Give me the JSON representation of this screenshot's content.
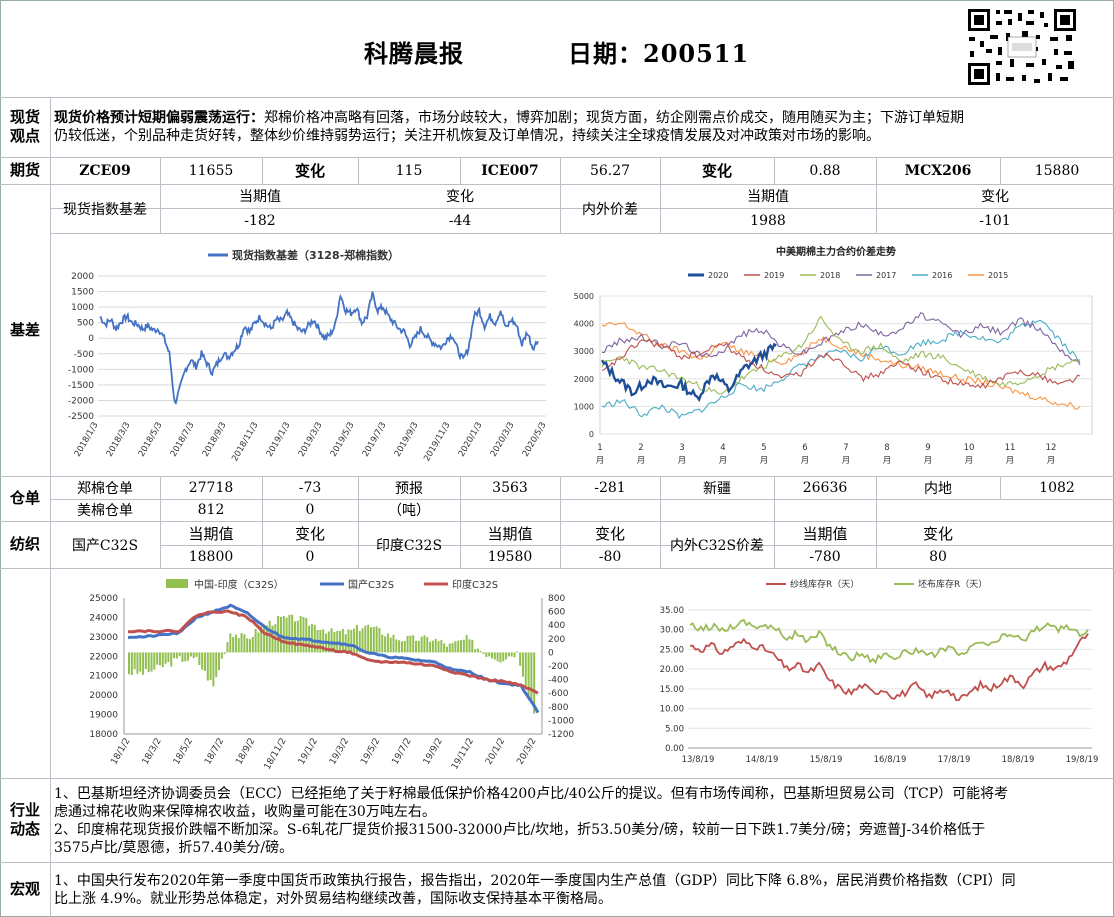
{
  "header": {
    "title": "科腾晨报",
    "date": "日期：200511"
  },
  "spot_view": {
    "label_line1": "现货",
    "label_line2": "观点",
    "headline": "现货价格预计短期偏弱震荡运行：",
    "line1": "郑棉价格冲高略有回落，市场分歧较大，博弈加剧；现货方面，纺企刚需点价成交，随用随买为主；下游订单短期",
    "line2": "仍较低迷，个别品种走货好转，整体纱价维持弱势运行；关注开机恢复及订单情况，持续关注全球疫情发展及对冲政策对市场的影响。"
  },
  "futures": {
    "label": "期货",
    "cells": [
      "ZCE09",
      "11655",
      "变化",
      "115",
      "ICE007",
      "56.27",
      "变化",
      "0.88",
      "MCX206",
      "15880"
    ]
  },
  "basis_table": {
    "row_label": "现货指数基差",
    "h_current": "当期值",
    "h_change": "变化",
    "current": "-182",
    "change": "-44",
    "row2_label": "内外价差",
    "h2_current": "当期值",
    "h2_change": "变化",
    "current2": "1988",
    "change2": "-101"
  },
  "basis_label": "基差",
  "chart_basis": {
    "chart_data": {
      "type": "line",
      "title": "",
      "legend": "现货指数基差（3128-郑棉指数）",
      "ylim": [
        -2500,
        2000
      ],
      "yticks": [
        "2000",
        "1500",
        "1000",
        "500",
        "0",
        "-500",
        "-1000",
        "-1500",
        "-2000",
        "-2500"
      ],
      "xticks": [
        "2018/1/3",
        "2018/3/3",
        "2018/5/3",
        "2018/7/3",
        "2018/9/3",
        "2018/11/3",
        "2019/1/3",
        "2019/3/3",
        "2019/5/3",
        "2019/7/3",
        "2019/9/3",
        "2019/11/3",
        "2020/1/3",
        "2020/3/3",
        "2020/5/3"
      ],
      "series": [
        {
          "name": "现货指数基差（3128-郑棉指数）",
          "color": "#4472c4",
          "values": [
            700,
            450,
            600,
            300,
            550,
            700,
            500,
            450,
            300,
            400,
            250,
            300,
            0,
            -500,
            -2100,
            -1600,
            -1000,
            -700,
            -900,
            -500,
            -800,
            -1100,
            -800,
            -500,
            -600,
            -400,
            -200,
            400,
            200,
            500,
            700,
            450,
            300,
            600,
            550,
            800,
            550,
            300,
            200,
            400,
            600,
            300,
            0,
            100,
            400,
            1400,
            900,
            800,
            1000,
            500,
            700,
            1400,
            900,
            1000,
            700,
            500,
            300,
            200,
            -200,
            0,
            300,
            100,
            -100,
            -200,
            -300,
            0,
            100,
            -400,
            -700,
            -300,
            700,
            900,
            400,
            700,
            500,
            900,
            300,
            600,
            400,
            -200,
            200,
            -300,
            -100
          ]
        }
      ]
    }
  },
  "chart_spread": {
    "chart_data": {
      "type": "line",
      "title": "中美期棉主力合约价差走势",
      "ylim": [
        0,
        5000
      ],
      "yticks": [
        "5000",
        "4000",
        "3000",
        "2000",
        "1000",
        "0"
      ],
      "xticks": [
        "1\n月",
        "2\n月",
        "3\n月",
        "4\n月",
        "5\n月",
        "6\n月",
        "7\n月",
        "8\n月",
        "9\n月",
        "10\n月",
        "11\n月",
        "12\n月"
      ],
      "series": [
        {
          "name": "2020",
          "color": "#1f4e99",
          "values": [
            2600,
            2000,
            1500,
            2000,
            1700,
            1800,
            1300,
            2200,
            1600,
            2400,
            2800,
            3200
          ]
        },
        {
          "name": "2019",
          "color": "#c0504d",
          "values": [
            2200,
            2800,
            3400,
            3200,
            2800,
            2900,
            3300,
            2800,
            2400,
            2000,
            2200,
            2900,
            2700,
            2000,
            2200,
            2600,
            2300,
            2000,
            1800,
            1700,
            2000,
            2300,
            2100,
            1800,
            2100
          ]
        },
        {
          "name": "2018",
          "color": "#9bbb59",
          "values": [
            2500,
            2800,
            2400,
            2300,
            2000,
            1700,
            1400,
            2000,
            2400,
            2800,
            3200,
            4200,
            3300,
            3000,
            3200,
            2600,
            2900,
            2800,
            2400,
            2100,
            1800,
            1900,
            2200,
            2500,
            2700
          ]
        },
        {
          "name": "2017",
          "color": "#8064a2",
          "values": [
            3000,
            3400,
            3500,
            3200,
            3300,
            2800,
            3000,
            3600,
            3800,
            3200,
            2900,
            3300,
            3700,
            4000,
            3600,
            3800,
            4300,
            4000,
            3600,
            3900,
            3700,
            4100,
            3800,
            3100,
            2500
          ]
        },
        {
          "name": "2016",
          "color": "#4bacc6",
          "values": [
            1000,
            1200,
            700,
            1000,
            600,
            900,
            1300,
            1800,
            1600,
            2000,
            2500,
            2800,
            3000,
            2700,
            3200,
            2900,
            3300,
            3400,
            3700,
            3500,
            3300,
            3900,
            4200,
            3400,
            2600
          ]
        },
        {
          "name": "2015",
          "color": "#f79646",
          "values": [
            3900,
            4000,
            3600,
            3200,
            3000,
            2700,
            3300,
            3000,
            2800,
            2600,
            2900,
            3500,
            3200,
            2900,
            2700,
            2500,
            2400,
            2200,
            2000,
            1900,
            1700,
            1500,
            1300,
            1100,
            1000
          ]
        }
      ]
    }
  },
  "warehouse": {
    "label": "仓单",
    "zce_label": "郑棉仓单",
    "zce_value": "27718",
    "zce_change": "-73",
    "forecast_label": "预报",
    "forecast_unit": "（吨）",
    "forecast_value": "3563",
    "forecast_change": "-281",
    "xj_label": "新疆",
    "xj_value": "26636",
    "nd_label": "内地",
    "nd_value": "1082",
    "us_label": "美棉仓单",
    "us_value": "812",
    "us_change": "0"
  },
  "textile": {
    "label": "纺织",
    "cn_label": "国产C32S",
    "in_label": "印度C32S",
    "diff_label": "内外C32S价差",
    "h_current": "当期值",
    "h_change": "变化",
    "cn_current": "18800",
    "cn_change": "0",
    "in_current": "19580",
    "in_change": "-80",
    "diff_current": "-780",
    "diff_change": "80"
  },
  "chart_yarn": {
    "chart_data": {
      "type": "line",
      "title": "",
      "legend": [
        "中国-印度（C32S）",
        "国产C32S",
        "印度C32S"
      ],
      "ylim": [
        18000,
        25000
      ],
      "ylim_right": [
        -1200,
        800
      ],
      "yticks": [
        "25000",
        "24000",
        "23000",
        "22000",
        "21000",
        "20000",
        "19000",
        "18000"
      ],
      "yticks_right": [
        "800",
        "600",
        "400",
        "200",
        "0",
        "-200",
        "-400",
        "-600",
        "-800",
        "-1000",
        "-1200"
      ],
      "xticks": [
        "18/1/2",
        "18/3/2",
        "18/5/2",
        "18/7/2",
        "18/9/2",
        "18/11/2",
        "19/1/2",
        "19/3/2",
        "19/5/2",
        "19/7/2",
        "19/9/2",
        "19/11/2",
        "20/1/2",
        "20/3/2"
      ],
      "series": [
        {
          "name": "国产C32S",
          "color": "#4472c4",
          "values": [
            23000,
            23000,
            23100,
            23200,
            24000,
            24300,
            24600,
            24200,
            23500,
            23000,
            22900,
            22800,
            22700,
            22600,
            22200,
            22000,
            21900,
            21800,
            21700,
            21300,
            21200,
            20800,
            20600,
            20500,
            19100
          ]
        },
        {
          "name": "印度C32S",
          "color": "#c0504d",
          "values": [
            23300,
            23300,
            23300,
            23300,
            24100,
            24300,
            24300,
            24000,
            23200,
            22800,
            22600,
            22500,
            22300,
            22200,
            21800,
            21700,
            21700,
            21600,
            21500,
            21200,
            21000,
            20800,
            20700,
            20500,
            20100
          ]
        },
        {
          "name": "中国-印度（C32S）",
          "color": "#92c050",
          "values": [
            -300,
            -300,
            -200,
            -100,
            -100,
            -500,
            300,
            200,
            400,
            500,
            500,
            400,
            300,
            300,
            400,
            300,
            200,
            200,
            200,
            100,
            200,
            0,
            -100,
            0,
            -900
          ]
        }
      ]
    }
  },
  "chart_stock": {
    "chart_data": {
      "type": "line",
      "title": "",
      "legend": [
        "纱线库存R（天）",
        "坯布库存R（天）"
      ],
      "ylim": [
        0,
        35
      ],
      "yticks": [
        "35.00",
        "30.00",
        "25.00",
        "20.00",
        "15.00",
        "10.00",
        "5.00",
        "0.00"
      ],
      "xticks": [
        "13/8/19",
        "14/8/19",
        "15/8/19",
        "16/8/19",
        "17/8/19",
        "18/8/19",
        "19/8/19"
      ],
      "series": [
        {
          "name": "纱线库存R（天）",
          "color": "#c0504d",
          "values": [
            26,
            25,
            26,
            24,
            26,
            27,
            26,
            25,
            23,
            20,
            21,
            19,
            21,
            17,
            15,
            14,
            16,
            14,
            15,
            13,
            14,
            16,
            13,
            14,
            15,
            12,
            14,
            16,
            15,
            17,
            18,
            16,
            19,
            21,
            20,
            22,
            26,
            29
          ]
        },
        {
          "name": "坯布库存R（天）",
          "color": "#9bbb59",
          "values": [
            31,
            30,
            31,
            30,
            31,
            32,
            31,
            31,
            30,
            28,
            29,
            27,
            29,
            26,
            24,
            23,
            24,
            22,
            24,
            23,
            24,
            25,
            23,
            24,
            26,
            23,
            25,
            27,
            26,
            28,
            29,
            27,
            30,
            31,
            30,
            31,
            29,
            30
          ]
        }
      ]
    }
  },
  "industry": {
    "label_line1": "行业",
    "label_line2": "动态",
    "p1_line1": "1、巴基斯坦经济协调委员会（ECC）已经拒绝了关于籽棉最低保护价格4200卢比/40公斤的提议。但有市场传闻称，巴基斯坦贸易公司（TCP）可能将考",
    "p1_line2": "虑通过棉花收购来保障棉农收益，收购量可能在30万吨左右。",
    "p2_line1": "2、印度棉花现货报价跌幅不断加深。S-6轧花厂提货价报31500-32000卢比/坎地，折53.50美分/磅，较前一日下跌1.7美分/磅；旁遮普J-34价格低于",
    "p2_line2": "3575卢比/莫恩德，折57.40美分/磅。"
  },
  "macro": {
    "label": "宏观",
    "line1": "1、中国央行发布2020年第一季度中国货币政策执行报告，报告指出，2020年一季度国内生产总值（GDP）同比下降 6.8%，居民消费价格指数（CPI）同",
    "line2": "比上涨 4.9%。就业形势总体稳定，对外贸易结构继续改善，国际收支保持基本平衡格局。"
  }
}
